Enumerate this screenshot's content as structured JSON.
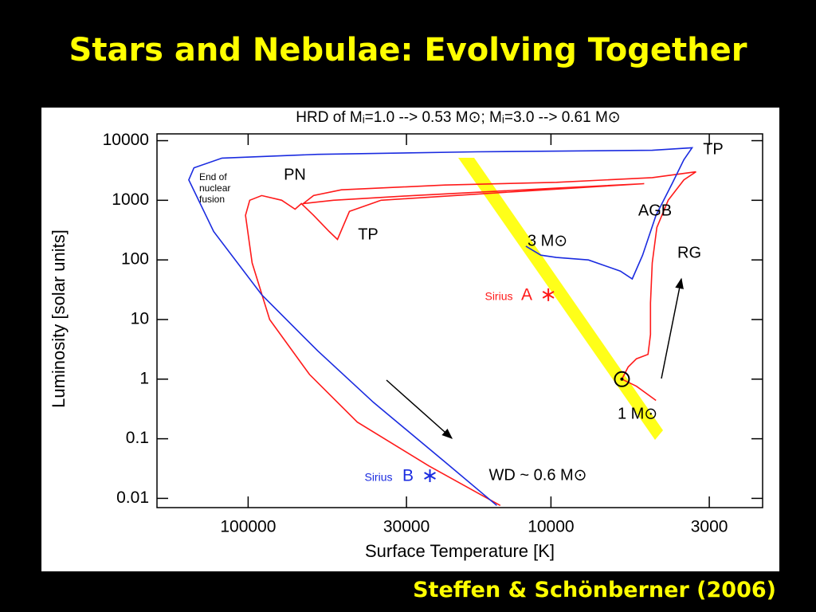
{
  "slide": {
    "title": "Stars and Nebulae: Evolving Together",
    "credit": "Steffen & Schönberner (2006)"
  },
  "chart_data": {
    "type": "line",
    "title": "HRD of Mᵢ=1.0 --> 0.53 M⊙; Mᵢ=3.0 --> 0.61 M⊙",
    "x_label": "Surface Temperature [K]",
    "y_label": "Luminosity [solar units]",
    "x_scale": "log",
    "y_scale": "log",
    "xlim": [
      200000,
      2000
    ],
    "ylim": [
      0.007,
      13000
    ],
    "xticks": [
      100000,
      30000,
      10000,
      3000
    ],
    "yticks": [
      10000,
      1000,
      100,
      10,
      1,
      0.1,
      0.01
    ],
    "series": [
      {
        "color": "#ff1a1a",
        "x": [
          4500,
          5220,
          5830,
          5560,
          5220,
          4780,
          4690,
          4690,
          4630,
          4470,
          4100,
          3640,
          3320,
          4630,
          9590,
          22400,
          49200,
          60800,
          65800,
          52300,
          28500,
          9590,
          4920,
          13000,
          36400,
          46300,
          50700,
          54000,
          60800,
          66700,
          70000,
          77500,
          90200,
          98800,
          102000,
          97000,
          84900,
          62700,
          43600,
          25300,
          14700
        ],
        "values": [
          0.44,
          0.76,
          1,
          1.6,
          2.2,
          2.6,
          5.6,
          19,
          89,
          350,
          1000,
          2200,
          3000,
          2400,
          2000,
          1800,
          1500,
          1200,
          880,
          1000,
          1200,
          1600,
          1900,
          1400,
          1000,
          650,
          220,
          300,
          560,
          880,
          710,
          1000,
          1200,
          1000,
          560,
          89,
          10,
          1.2,
          0.19,
          0.035,
          0.0076
        ]
      },
      {
        "color": "#1a2be0",
        "x": [
          12100,
          10800,
          9590,
          7520,
          5900,
          5390,
          4980,
          4500,
          3980,
          3640,
          3420,
          4630,
          17600,
          59000,
          122000,
          151000,
          157000,
          130000,
          90200,
          59000,
          38600,
          22400,
          15100
        ],
        "values": [
          170,
          120,
          110,
          100,
          65,
          48,
          120,
          560,
          1900,
          4800,
          7600,
          6900,
          6500,
          5900,
          5100,
          3500,
          2200,
          300,
          26,
          3.0,
          0.41,
          0.041,
          0.0076
        ]
      }
    ],
    "points": [
      {
        "x": 10200,
        "y": 26,
        "color": "#ff1a1a"
      },
      {
        "x": 25100,
        "y": 0.024,
        "color": "#1a2be0"
      },
      {
        "x": 5830,
        "y": 1,
        "color": "#000000"
      }
    ],
    "annotations": [
      "PN",
      "TP",
      "TP",
      "AGB",
      "RG",
      "3 M⊙",
      "1 M⊙",
      "WD ~ 0.6 M⊙",
      "Sirius",
      "A",
      "Sirius",
      "B",
      "End of",
      "nuclear",
      "fusion"
    ]
  }
}
